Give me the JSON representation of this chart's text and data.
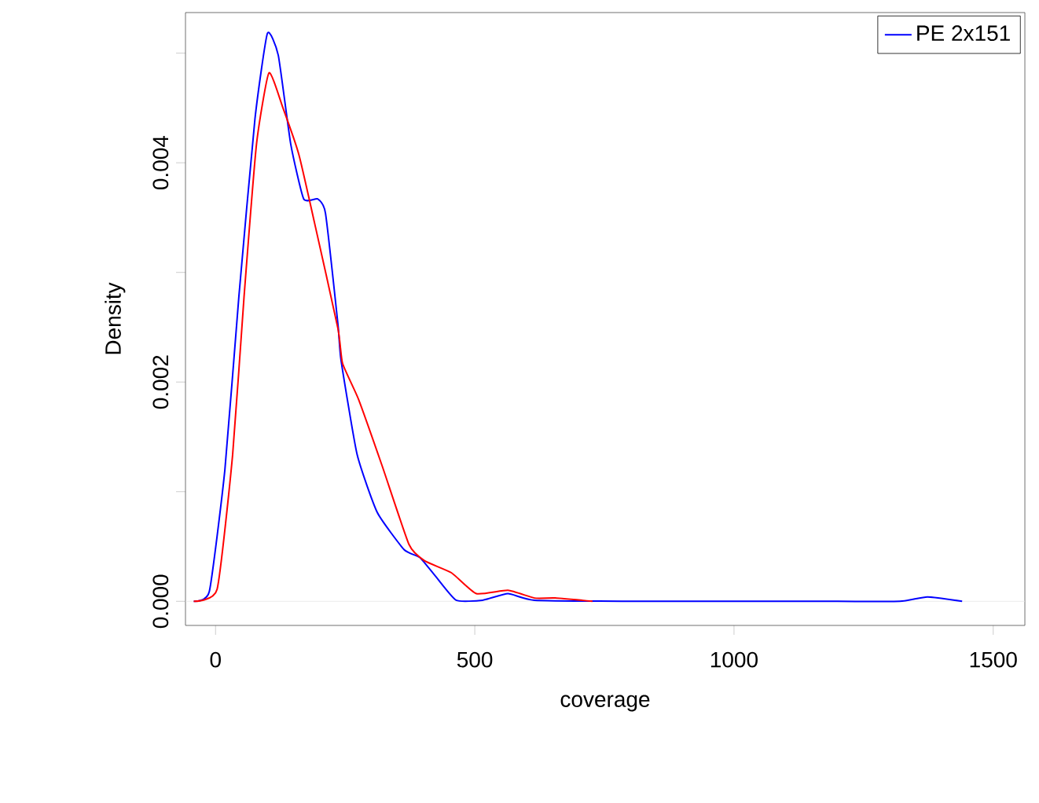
{
  "chart_data": {
    "type": "line",
    "xlabel": "coverage",
    "ylabel": "Density",
    "xlim": [
      -58,
      1561
    ],
    "ylim": [
      -0.00022,
      0.00537
    ],
    "xticks": [
      0,
      500,
      1000,
      1500
    ],
    "yticks": [
      {
        "value": 0,
        "label": "0.000"
      },
      {
        "value": 0.001,
        "label": null
      },
      {
        "value": 0.002,
        "label": "0.002"
      },
      {
        "value": 0.003,
        "label": null
      },
      {
        "value": 0.004,
        "label": "0.004"
      },
      {
        "value": 0.005,
        "label": null
      }
    ],
    "legend": "top right",
    "ref_lines": [
      {
        "axis": "y",
        "value": 0,
        "color": "#e6e6e6"
      }
    ],
    "series": [
      {
        "name": "PE 2x151",
        "color": "#0000ff",
        "x": [
          -42,
          -12,
          18,
          45,
          76,
          100,
          121,
          145,
          170,
          197,
          212,
          236,
          242,
          273,
          312,
          364,
          394,
          424,
          464,
          515,
          564,
          615,
          800,
          1000,
          1200,
          1320,
          1373,
          1440
        ],
        "values": [
          0,
          9e-05,
          0.0012,
          0.00278,
          0.0044,
          0.00518,
          0.00498,
          0.00417,
          0.00367,
          0.00367,
          0.00354,
          0.00253,
          0.0022,
          0.00134,
          0.00081,
          0.00047,
          0.0004,
          0.00023,
          1e-05,
          1e-05,
          7e-05,
          1e-05,
          0,
          0,
          0,
          0,
          4e-05,
          0
        ]
      },
      {
        "color": "#ff0000",
        "x": [
          -42,
          3,
          33,
          55,
          79,
          103,
          130,
          161,
          191,
          236,
          245,
          276,
          321,
          373,
          403,
          455,
          503,
          564,
          615,
          655,
          727
        ],
        "values": [
          0,
          0.00011,
          0.00134,
          0.00278,
          0.00417,
          0.00482,
          0.0045,
          0.00407,
          0.00345,
          0.00249,
          0.00217,
          0.00184,
          0.00124,
          0.00052,
          0.00037,
          0.00026,
          7e-05,
          0.0001,
          3e-05,
          3e-05,
          0
        ]
      }
    ]
  }
}
